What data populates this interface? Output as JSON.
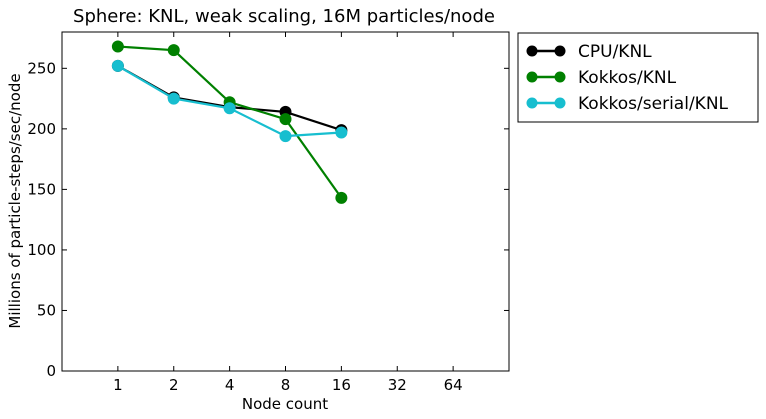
{
  "chart_data": {
    "type": "line",
    "title": "Sphere: KNL, weak scaling, 16M particles/node",
    "xlabel": "Node count",
    "ylabel": "Millions of particle-steps/sec/node",
    "x_scale": "log2",
    "x_ticks": [
      1,
      2,
      4,
      8,
      16,
      32,
      64
    ],
    "x_tick_labels": [
      "1",
      "2",
      "4",
      "8",
      "16",
      "32",
      "64"
    ],
    "xlim": [
      0.5,
      128
    ],
    "y_ticks": [
      0,
      50,
      100,
      150,
      200,
      250
    ],
    "y_tick_labels": [
      "0",
      "50",
      "100",
      "150",
      "200",
      "250"
    ],
    "ylim": [
      0,
      280
    ],
    "grid": false,
    "legend_position": "outside-top-right",
    "series": [
      {
        "name": "CPU/KNL",
        "color": "#000000",
        "x": [
          1,
          2,
          4,
          8,
          16
        ],
        "y": [
          252,
          226,
          218,
          214,
          199
        ]
      },
      {
        "name": "Kokkos/KNL",
        "color": "#008000",
        "x": [
          1,
          2,
          4,
          8,
          16
        ],
        "y": [
          268,
          265,
          222,
          208,
          143
        ]
      },
      {
        "name": "Kokkos/serial/KNL",
        "color": "#17becf",
        "x": [
          1,
          2,
          4,
          8,
          16
        ],
        "y": [
          252,
          225,
          217,
          194,
          197
        ]
      }
    ]
  }
}
